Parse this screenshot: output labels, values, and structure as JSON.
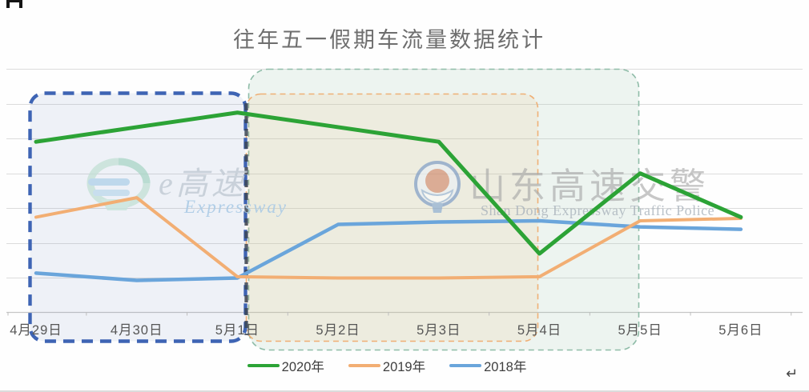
{
  "page": {
    "paragraph_mark": "↵"
  },
  "watermarks": {
    "left": {
      "logo_icon": "e-expressway-swirl-logo",
      "text_cn": "e高速",
      "text_en": "Expressway"
    },
    "right": {
      "logo_icon": "police-badge",
      "text_cn": "山东高速交警",
      "text_en": "Shan Dong Expressway Traffic Police"
    }
  },
  "chart_data": {
    "type": "line",
    "title": "往年五一假期车流量数据统计",
    "categories": [
      "4月29日",
      "4月30日",
      "5月1日",
      "5月2日",
      "5月3日",
      "5月4日",
      "5月5日",
      "5月6日"
    ],
    "series": [
      {
        "name": "2020年",
        "color": "#2ca336",
        "values": [
          70,
          76,
          82,
          76,
          70,
          24,
          57,
          39
        ]
      },
      {
        "name": "2019年",
        "color": "#f2ae73",
        "values": [
          39,
          47,
          14.5,
          14,
          14,
          14.5,
          37.5,
          38.5
        ]
      },
      {
        "name": "2018年",
        "color": "#6aa5db",
        "values": [
          16,
          13,
          14,
          36,
          37,
          37.5,
          35,
          34
        ]
      }
    ],
    "ylim": [
      0,
      100
    ],
    "value_axis_labels_visible": false,
    "grid": true,
    "legend_position": "bottom",
    "annotations": [
      {
        "name": "blue-dashed-box",
        "covers_categories": [
          "4月29日",
          "5月1日"
        ],
        "stroke": "#3e64b4"
      },
      {
        "name": "orange-dashed-box",
        "covers_categories": [
          "5月1日",
          "5月4日"
        ],
        "stroke": "#efaf75"
      },
      {
        "name": "teal-shaded-box",
        "covers_categories": [
          "5月1日",
          "5月5日"
        ],
        "stroke": "#8fbca8"
      }
    ]
  }
}
